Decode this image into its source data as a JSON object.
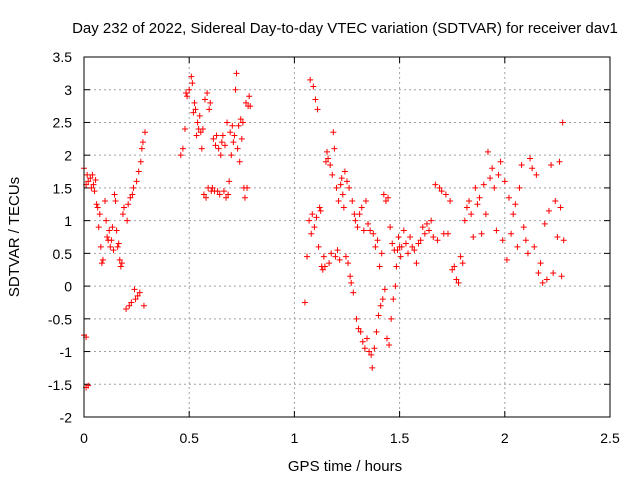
{
  "chart_data": {
    "type": "scatter",
    "title": "Day 232 of 2022, Sidereal Day-to-day VTEC variation (SDTVAR) for receiver dav1",
    "xlabel": "GPS time / hours",
    "ylabel": "SDTVAR / TECUs",
    "xlim": [
      0,
      2.5
    ],
    "ylim": [
      -2,
      3.5
    ],
    "xticks": [
      "0",
      "0.5",
      "1",
      "1.5",
      "2",
      "2.5"
    ],
    "yticks": [
      "3.5",
      "3",
      "2.5",
      "2",
      "1.5",
      "1",
      "0.5",
      "0",
      "-0.5",
      "-1",
      "-1.5",
      "-2"
    ],
    "grid": true,
    "marker": "+",
    "color": "#ff0000",
    "series": [
      {
        "name": "SDTVAR",
        "points": [
          [
            0.0,
            1.8
          ],
          [
            0.0,
            -0.75
          ],
          [
            0.01,
            1.55
          ],
          [
            0.01,
            -0.78
          ],
          [
            0.01,
            -1.55
          ],
          [
            0.015,
            1.7
          ],
          [
            0.02,
            -1.52
          ],
          [
            0.02,
            1.6
          ],
          [
            0.03,
            1.65
          ],
          [
            0.035,
            1.5
          ],
          [
            0.04,
            1.7
          ],
          [
            0.045,
            1.55
          ],
          [
            0.05,
            1.45
          ],
          [
            0.055,
            1.62
          ],
          [
            0.06,
            1.25
          ],
          [
            0.065,
            1.2
          ],
          [
            0.07,
            0.9
          ],
          [
            0.075,
            1.1
          ],
          [
            0.08,
            0.6
          ],
          [
            0.085,
            0.35
          ],
          [
            0.09,
            0.4
          ],
          [
            0.1,
            1.3
          ],
          [
            0.105,
            1.0
          ],
          [
            0.11,
            0.75
          ],
          [
            0.115,
            0.7
          ],
          [
            0.12,
            0.85
          ],
          [
            0.125,
            0.6
          ],
          [
            0.13,
            0.7
          ],
          [
            0.135,
            0.9
          ],
          [
            0.14,
            0.55
          ],
          [
            0.145,
            1.4
          ],
          [
            0.15,
            1.3
          ],
          [
            0.155,
            0.85
          ],
          [
            0.16,
            0.6
          ],
          [
            0.165,
            0.65
          ],
          [
            0.17,
            0.4
          ],
          [
            0.175,
            0.3
          ],
          [
            0.18,
            0.35
          ],
          [
            0.185,
            1.1
          ],
          [
            0.19,
            1.2
          ],
          [
            0.2,
            -0.35
          ],
          [
            0.205,
            1.0
          ],
          [
            0.21,
            1.25
          ],
          [
            0.215,
            -0.3
          ],
          [
            0.22,
            1.35
          ],
          [
            0.225,
            -0.25
          ],
          [
            0.23,
            1.4
          ],
          [
            0.235,
            1.5
          ],
          [
            0.24,
            -0.05
          ],
          [
            0.245,
            -0.2
          ],
          [
            0.25,
            1.6
          ],
          [
            0.255,
            -0.15
          ],
          [
            0.26,
            1.75
          ],
          [
            0.265,
            -0.1
          ],
          [
            0.27,
            1.9
          ],
          [
            0.275,
            2.1
          ],
          [
            0.28,
            2.2
          ],
          [
            0.285,
            -0.3
          ],
          [
            0.29,
            2.35
          ],
          [
            0.46,
            2.0
          ],
          [
            0.47,
            2.1
          ],
          [
            0.48,
            2.4
          ],
          [
            0.485,
            2.95
          ],
          [
            0.49,
            2.9
          ],
          [
            0.5,
            3.0
          ],
          [
            0.51,
            3.2
          ],
          [
            0.515,
            3.1
          ],
          [
            0.52,
            2.65
          ],
          [
            0.525,
            2.8
          ],
          [
            0.53,
            2.7
          ],
          [
            0.535,
            2.3
          ],
          [
            0.54,
            2.5
          ],
          [
            0.545,
            2.4
          ],
          [
            0.55,
            2.6
          ],
          [
            0.555,
            2.35
          ],
          [
            0.56,
            2.1
          ],
          [
            0.565,
            2.4
          ],
          [
            0.57,
            1.4
          ],
          [
            0.575,
            2.85
          ],
          [
            0.58,
            1.35
          ],
          [
            0.585,
            2.95
          ],
          [
            0.59,
            1.5
          ],
          [
            0.595,
            2.7
          ],
          [
            0.6,
            2.8
          ],
          [
            0.605,
            1.45
          ],
          [
            0.61,
            1.5
          ],
          [
            0.615,
            2.25
          ],
          [
            0.62,
            1.45
          ],
          [
            0.625,
            2.15
          ],
          [
            0.63,
            2.3
          ],
          [
            0.635,
            1.45
          ],
          [
            0.64,
            2.1
          ],
          [
            0.645,
            1.4
          ],
          [
            0.65,
            2.0
          ],
          [
            0.655,
            2.2
          ],
          [
            0.66,
            2.3
          ],
          [
            0.665,
            1.45
          ],
          [
            0.67,
            2.15
          ],
          [
            0.675,
            1.35
          ],
          [
            0.68,
            2.5
          ],
          [
            0.685,
            1.4
          ],
          [
            0.69,
            1.6
          ],
          [
            0.695,
            2.35
          ],
          [
            0.7,
            2.0
          ],
          [
            0.705,
            2.45
          ],
          [
            0.71,
            2.2
          ],
          [
            0.715,
            2.3
          ],
          [
            0.72,
            3.0
          ],
          [
            0.725,
            3.25
          ],
          [
            0.73,
            2.1
          ],
          [
            0.735,
            2.45
          ],
          [
            0.74,
            1.9
          ],
          [
            0.745,
            2.55
          ],
          [
            0.75,
            2.25
          ],
          [
            0.755,
            2.5
          ],
          [
            0.76,
            1.5
          ],
          [
            0.765,
            1.35
          ],
          [
            0.77,
            2.8
          ],
          [
            0.775,
            1.5
          ],
          [
            0.78,
            2.75
          ],
          [
            0.785,
            2.9
          ],
          [
            0.79,
            2.75
          ],
          [
            1.05,
            -0.25
          ],
          [
            1.06,
            0.45
          ],
          [
            1.07,
            1.0
          ],
          [
            1.075,
            3.15
          ],
          [
            1.08,
            0.8
          ],
          [
            1.085,
            1.1
          ],
          [
            1.09,
            3.05
          ],
          [
            1.095,
            0.9
          ],
          [
            1.1,
            2.85
          ],
          [
            1.105,
            1.05
          ],
          [
            1.11,
            2.7
          ],
          [
            1.115,
            0.6
          ],
          [
            1.12,
            1.2
          ],
          [
            1.125,
            1.15
          ],
          [
            1.13,
            0.3
          ],
          [
            1.135,
            0.25
          ],
          [
            1.14,
            0.45
          ],
          [
            1.145,
            0.3
          ],
          [
            1.15,
            1.9
          ],
          [
            1.155,
            2.05
          ],
          [
            1.16,
            1.95
          ],
          [
            1.165,
            0.35
          ],
          [
            1.17,
            1.85
          ],
          [
            1.175,
            0.5
          ],
          [
            1.18,
            1.7
          ],
          [
            1.185,
            2.35
          ],
          [
            1.19,
            2.1
          ],
          [
            1.195,
            0.45
          ],
          [
            1.2,
            1.5
          ],
          [
            1.205,
            0.55
          ],
          [
            1.21,
            1.3
          ],
          [
            1.215,
            0.4
          ],
          [
            1.22,
            1.55
          ],
          [
            1.225,
            1.65
          ],
          [
            1.23,
            1.4
          ],
          [
            1.235,
            1.2
          ],
          [
            1.24,
            1.75
          ],
          [
            1.245,
            0.45
          ],
          [
            1.25,
            1.6
          ],
          [
            1.255,
            0.35
          ],
          [
            1.26,
            1.5
          ],
          [
            1.265,
            0.15
          ],
          [
            1.27,
            0.05
          ],
          [
            1.275,
            1.3
          ],
          [
            1.28,
            -0.1
          ],
          [
            1.285,
            1.1
          ],
          [
            1.29,
            1.0
          ],
          [
            1.295,
            -0.5
          ],
          [
            1.3,
            0.9
          ],
          [
            1.305,
            -0.65
          ],
          [
            1.31,
            1.1
          ],
          [
            1.315,
            -0.7
          ],
          [
            1.32,
            1.2
          ],
          [
            1.325,
            -0.85
          ],
          [
            1.33,
            0.85
          ],
          [
            1.335,
            -0.95
          ],
          [
            1.34,
            1.3
          ],
          [
            1.345,
            -0.8
          ],
          [
            1.35,
            0.95
          ],
          [
            1.355,
            -1.0
          ],
          [
            1.36,
            0.85
          ],
          [
            1.365,
            -1.05
          ],
          [
            1.37,
            -1.25
          ],
          [
            1.375,
            0.8
          ],
          [
            1.38,
            -0.95
          ],
          [
            1.385,
            0.6
          ],
          [
            1.39,
            -0.7
          ],
          [
            1.395,
            0.7
          ],
          [
            1.4,
            -0.45
          ],
          [
            1.405,
            0.3
          ],
          [
            1.41,
            -0.3
          ],
          [
            1.415,
            0.5
          ],
          [
            1.42,
            -0.2
          ],
          [
            1.425,
            1.4
          ],
          [
            1.43,
            -0.05
          ],
          [
            1.435,
            1.3
          ],
          [
            1.44,
            -0.8
          ],
          [
            1.445,
            1.35
          ],
          [
            1.45,
            -0.9
          ],
          [
            1.455,
            0.9
          ],
          [
            1.46,
            -0.5
          ],
          [
            1.465,
            0.65
          ],
          [
            1.47,
            -0.2
          ],
          [
            1.475,
            0.55
          ],
          [
            1.48,
            0.0
          ],
          [
            1.485,
            0.3
          ],
          [
            1.49,
            0.55
          ],
          [
            1.495,
            0.75
          ],
          [
            1.5,
            0.6
          ],
          [
            1.505,
            0.45
          ],
          [
            1.51,
            0.6
          ],
          [
            1.52,
            0.85
          ],
          [
            1.53,
            0.65
          ],
          [
            1.54,
            0.5
          ],
          [
            1.55,
            0.75
          ],
          [
            1.56,
            0.6
          ],
          [
            1.57,
            0.55
          ],
          [
            1.58,
            0.35
          ],
          [
            1.59,
            0.65
          ],
          [
            1.6,
            0.7
          ],
          [
            1.61,
            0.9
          ],
          [
            1.62,
            0.8
          ],
          [
            1.63,
            0.95
          ],
          [
            1.64,
            0.85
          ],
          [
            1.65,
            1.0
          ],
          [
            1.66,
            0.75
          ],
          [
            1.67,
            1.55
          ],
          [
            1.68,
            0.7
          ],
          [
            1.69,
            1.5
          ],
          [
            1.7,
            1.45
          ],
          [
            1.71,
            0.8
          ],
          [
            1.72,
            1.4
          ],
          [
            1.73,
            0.8
          ],
          [
            1.74,
            1.3
          ],
          [
            1.75,
            0.25
          ],
          [
            1.76,
            0.3
          ],
          [
            1.77,
            0.1
          ],
          [
            1.78,
            0.05
          ],
          [
            1.79,
            0.45
          ],
          [
            1.8,
            0.35
          ],
          [
            1.81,
            1.0
          ],
          [
            1.82,
            1.2
          ],
          [
            1.83,
            1.3
          ],
          [
            1.84,
            1.1
          ],
          [
            1.85,
            0.75
          ],
          [
            1.86,
            1.5
          ],
          [
            1.87,
            1.25
          ],
          [
            1.88,
            1.35
          ],
          [
            1.89,
            0.8
          ],
          [
            1.9,
            1.55
          ],
          [
            1.91,
            1.1
          ],
          [
            1.92,
            2.05
          ],
          [
            1.93,
            1.65
          ],
          [
            1.94,
            1.8
          ],
          [
            1.95,
            1.5
          ],
          [
            1.96,
            0.85
          ],
          [
            1.97,
            1.7
          ],
          [
            1.98,
            1.9
          ],
          [
            1.99,
            0.7
          ],
          [
            2.0,
            1.6
          ],
          [
            2.01,
            0.4
          ],
          [
            2.02,
            1.35
          ],
          [
            2.03,
            0.8
          ],
          [
            2.04,
            1.1
          ],
          [
            2.05,
            1.25
          ],
          [
            2.06,
            0.6
          ],
          [
            2.07,
            1.5
          ],
          [
            2.08,
            1.85
          ],
          [
            2.09,
            0.9
          ],
          [
            2.1,
            0.7
          ],
          [
            2.11,
            0.5
          ],
          [
            2.12,
            1.95
          ],
          [
            2.13,
            1.8
          ],
          [
            2.14,
            0.6
          ],
          [
            2.15,
            1.7
          ],
          [
            2.16,
            0.2
          ],
          [
            2.17,
            0.35
          ],
          [
            2.18,
            0.05
          ],
          [
            2.19,
            0.95
          ],
          [
            2.2,
            0.1
          ],
          [
            2.21,
            1.15
          ],
          [
            2.22,
            1.85
          ],
          [
            2.23,
            0.2
          ],
          [
            2.24,
            1.3
          ],
          [
            2.25,
            0.75
          ],
          [
            2.26,
            1.9
          ],
          [
            2.265,
            1.2
          ],
          [
            2.27,
            0.15
          ],
          [
            2.275,
            2.5
          ],
          [
            2.28,
            0.7
          ]
        ]
      }
    ]
  }
}
